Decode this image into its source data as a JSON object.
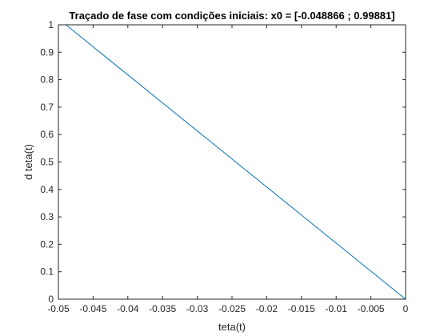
{
  "chart_data": {
    "type": "line",
    "title": "Traçado de fase com condições iniciais: x0 = [-0.048866 ; 0.99881]",
    "xlabel": "teta(t)",
    "ylabel": "d teta(t)",
    "xlim": [
      -0.05,
      0
    ],
    "ylim": [
      0,
      1
    ],
    "xticks": [
      -0.05,
      -0.045,
      -0.04,
      -0.035,
      -0.03,
      -0.025,
      -0.02,
      -0.015,
      -0.01,
      -0.005,
      0
    ],
    "xtick_labels": [
      "-0.05",
      "-0.045",
      "-0.04",
      "-0.035",
      "-0.03",
      "-0.025",
      "-0.02",
      "-0.015",
      "-0.01",
      "-0.005",
      "0"
    ],
    "yticks": [
      0,
      0.1,
      0.2,
      0.3,
      0.4,
      0.5,
      0.6,
      0.7,
      0.8,
      0.9,
      1
    ],
    "ytick_labels": [
      "0",
      "0.1",
      "0.2",
      "0.3",
      "0.4",
      "0.5",
      "0.6",
      "0.7",
      "0.8",
      "0.9",
      "1"
    ],
    "grid": false,
    "series": [
      {
        "color": "#0072BD",
        "x": [
          -0.048866,
          0
        ],
        "y": [
          0.99881,
          0
        ]
      }
    ],
    "axis_color": "#262626"
  }
}
